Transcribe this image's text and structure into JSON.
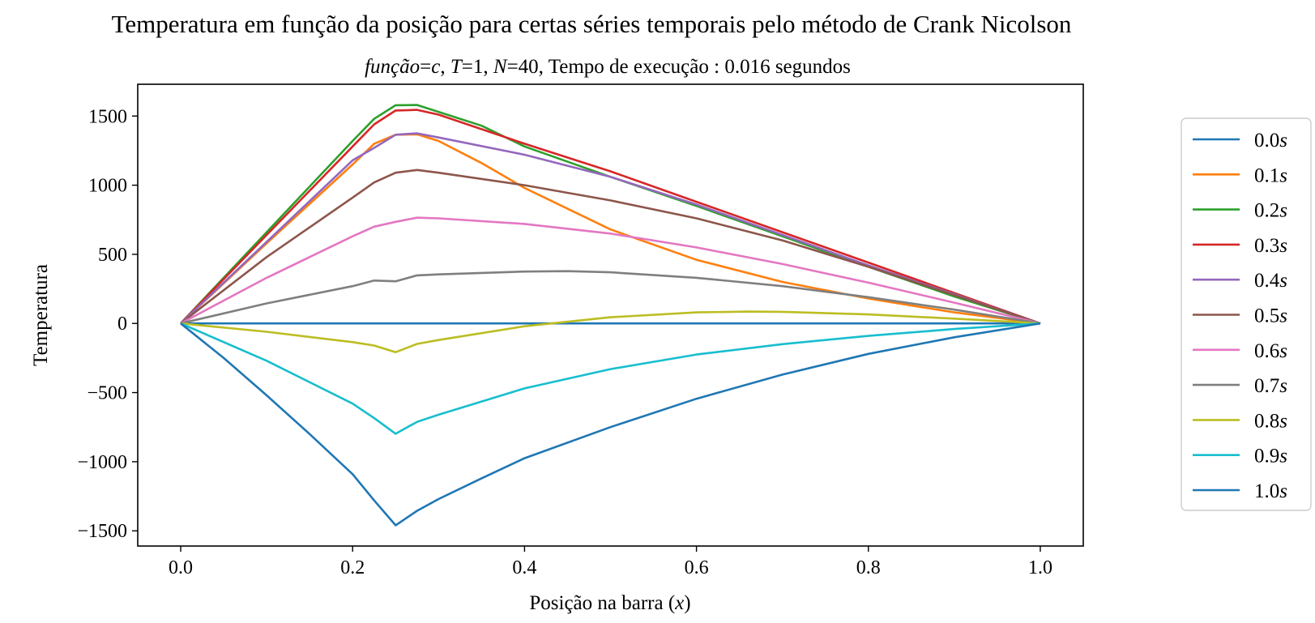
{
  "chart_data": {
    "type": "line",
    "title": "Temperatura em função da posição para certas séries temporais pelo método de Crank Nicolson",
    "subtitle": {
      "funcao_label": "função",
      "funcao_value": "c",
      "T_label": "T",
      "T_value": "1",
      "N_label": "N",
      "N_value": "40",
      "tempo_label": "Tempo de execução :",
      "tempo_value": "0.016 segundos"
    },
    "xlabel": "Posição na barra",
    "xlabel_var": "x",
    "ylabel": "Temperatura",
    "xlim": [
      -0.05,
      1.05
    ],
    "ylim": [
      -1610,
      1730
    ],
    "xticks": [
      0.0,
      0.2,
      0.4,
      0.6,
      0.8,
      1.0
    ],
    "xtick_labels": [
      "0.0",
      "0.2",
      "0.4",
      "0.6",
      "0.8",
      "1.0"
    ],
    "yticks": [
      -1500,
      -1000,
      -500,
      0,
      500,
      1000,
      1500
    ],
    "ytick_labels": [
      "−1500",
      "−1000",
      "−500",
      "0",
      "500",
      "1000",
      "1500"
    ],
    "grid": false,
    "legend_position": "outside-right",
    "series": [
      {
        "name": "0.0",
        "color": "#1f77b4",
        "points": [
          [
            0,
            0
          ],
          [
            0.25,
            0
          ],
          [
            0.5,
            0
          ],
          [
            0.75,
            0
          ],
          [
            1,
            0
          ]
        ]
      },
      {
        "name": "0.1",
        "color": "#ff7f0e",
        "points": [
          [
            0,
            0
          ],
          [
            0.1,
            580
          ],
          [
            0.2,
            1150
          ],
          [
            0.225,
            1300
          ],
          [
            0.25,
            1365
          ],
          [
            0.275,
            1368
          ],
          [
            0.3,
            1320
          ],
          [
            0.35,
            1160
          ],
          [
            0.4,
            980
          ],
          [
            0.5,
            680
          ],
          [
            0.6,
            460
          ],
          [
            0.7,
            300
          ],
          [
            0.8,
            180
          ],
          [
            0.9,
            80
          ],
          [
            1,
            0
          ]
        ]
      },
      {
        "name": "0.2",
        "color": "#2ca02c",
        "points": [
          [
            0,
            0
          ],
          [
            0.1,
            660
          ],
          [
            0.2,
            1320
          ],
          [
            0.225,
            1480
          ],
          [
            0.25,
            1578
          ],
          [
            0.275,
            1580
          ],
          [
            0.3,
            1530
          ],
          [
            0.35,
            1430
          ],
          [
            0.4,
            1280
          ],
          [
            0.5,
            1060
          ],
          [
            0.6,
            850
          ],
          [
            0.7,
            630
          ],
          [
            0.8,
            410
          ],
          [
            0.9,
            195
          ],
          [
            1,
            0
          ]
        ]
      },
      {
        "name": "0.3",
        "color": "#d62728",
        "points": [
          [
            0,
            0
          ],
          [
            0.1,
            640
          ],
          [
            0.2,
            1280
          ],
          [
            0.225,
            1440
          ],
          [
            0.25,
            1540
          ],
          [
            0.275,
            1545
          ],
          [
            0.3,
            1510
          ],
          [
            0.4,
            1300
          ],
          [
            0.5,
            1100
          ],
          [
            0.6,
            880
          ],
          [
            0.7,
            660
          ],
          [
            0.8,
            440
          ],
          [
            0.9,
            220
          ],
          [
            1,
            0
          ]
        ]
      },
      {
        "name": "0.4",
        "color": "#9467bd",
        "points": [
          [
            0,
            0
          ],
          [
            0.1,
            590
          ],
          [
            0.2,
            1180
          ],
          [
            0.225,
            1270
          ],
          [
            0.25,
            1365
          ],
          [
            0.275,
            1375
          ],
          [
            0.3,
            1345
          ],
          [
            0.4,
            1220
          ],
          [
            0.5,
            1060
          ],
          [
            0.6,
            860
          ],
          [
            0.7,
            640
          ],
          [
            0.8,
            420
          ],
          [
            0.9,
            210
          ],
          [
            1,
            0
          ]
        ]
      },
      {
        "name": "0.5",
        "color": "#8c564b",
        "points": [
          [
            0,
            0
          ],
          [
            0.1,
            480
          ],
          [
            0.2,
            910
          ],
          [
            0.225,
            1020
          ],
          [
            0.25,
            1090
          ],
          [
            0.275,
            1110
          ],
          [
            0.3,
            1090
          ],
          [
            0.4,
            1000
          ],
          [
            0.5,
            890
          ],
          [
            0.6,
            760
          ],
          [
            0.7,
            600
          ],
          [
            0.8,
            410
          ],
          [
            0.9,
            205
          ],
          [
            1,
            0
          ]
        ]
      },
      {
        "name": "0.6",
        "color": "#e377c2",
        "points": [
          [
            0,
            0
          ],
          [
            0.1,
            330
          ],
          [
            0.2,
            630
          ],
          [
            0.225,
            700
          ],
          [
            0.25,
            735
          ],
          [
            0.275,
            765
          ],
          [
            0.3,
            760
          ],
          [
            0.4,
            720
          ],
          [
            0.5,
            650
          ],
          [
            0.6,
            550
          ],
          [
            0.7,
            430
          ],
          [
            0.8,
            295
          ],
          [
            0.9,
            150
          ],
          [
            1,
            0
          ]
        ]
      },
      {
        "name": "0.7",
        "color": "#7f7f7f",
        "points": [
          [
            0,
            0
          ],
          [
            0.1,
            145
          ],
          [
            0.2,
            270
          ],
          [
            0.225,
            310
          ],
          [
            0.25,
            305
          ],
          [
            0.275,
            348
          ],
          [
            0.3,
            355
          ],
          [
            0.4,
            375
          ],
          [
            0.45,
            378
          ],
          [
            0.5,
            370
          ],
          [
            0.6,
            330
          ],
          [
            0.7,
            270
          ],
          [
            0.8,
            190
          ],
          [
            0.9,
            100
          ],
          [
            1,
            0
          ]
        ]
      },
      {
        "name": "0.8",
        "color": "#bcbd22",
        "points": [
          [
            0,
            0
          ],
          [
            0.1,
            -60
          ],
          [
            0.2,
            -135
          ],
          [
            0.225,
            -160
          ],
          [
            0.25,
            -208
          ],
          [
            0.275,
            -148
          ],
          [
            0.3,
            -120
          ],
          [
            0.4,
            -20
          ],
          [
            0.5,
            45
          ],
          [
            0.6,
            80
          ],
          [
            0.66,
            86
          ],
          [
            0.7,
            84
          ],
          [
            0.8,
            65
          ],
          [
            0.9,
            35
          ],
          [
            1,
            0
          ]
        ]
      },
      {
        "name": "0.9",
        "color": "#17becf",
        "points": [
          [
            0,
            0
          ],
          [
            0.1,
            -270
          ],
          [
            0.2,
            -580
          ],
          [
            0.225,
            -685
          ],
          [
            0.25,
            -798
          ],
          [
            0.275,
            -712
          ],
          [
            0.3,
            -660
          ],
          [
            0.4,
            -470
          ],
          [
            0.5,
            -330
          ],
          [
            0.6,
            -225
          ],
          [
            0.7,
            -150
          ],
          [
            0.8,
            -90
          ],
          [
            0.9,
            -40
          ],
          [
            1,
            0
          ]
        ]
      },
      {
        "name": "1.0",
        "color": "#1f77b4",
        "points": [
          [
            0,
            0
          ],
          [
            0.05,
            -250
          ],
          [
            0.1,
            -520
          ],
          [
            0.15,
            -800
          ],
          [
            0.2,
            -1090
          ],
          [
            0.225,
            -1280
          ],
          [
            0.25,
            -1460
          ],
          [
            0.275,
            -1355
          ],
          [
            0.3,
            -1270
          ],
          [
            0.35,
            -1120
          ],
          [
            0.4,
            -975
          ],
          [
            0.5,
            -750
          ],
          [
            0.6,
            -545
          ],
          [
            0.7,
            -370
          ],
          [
            0.8,
            -220
          ],
          [
            0.9,
            -100
          ],
          [
            1,
            0
          ]
        ]
      }
    ],
    "legend_unit": "s"
  }
}
